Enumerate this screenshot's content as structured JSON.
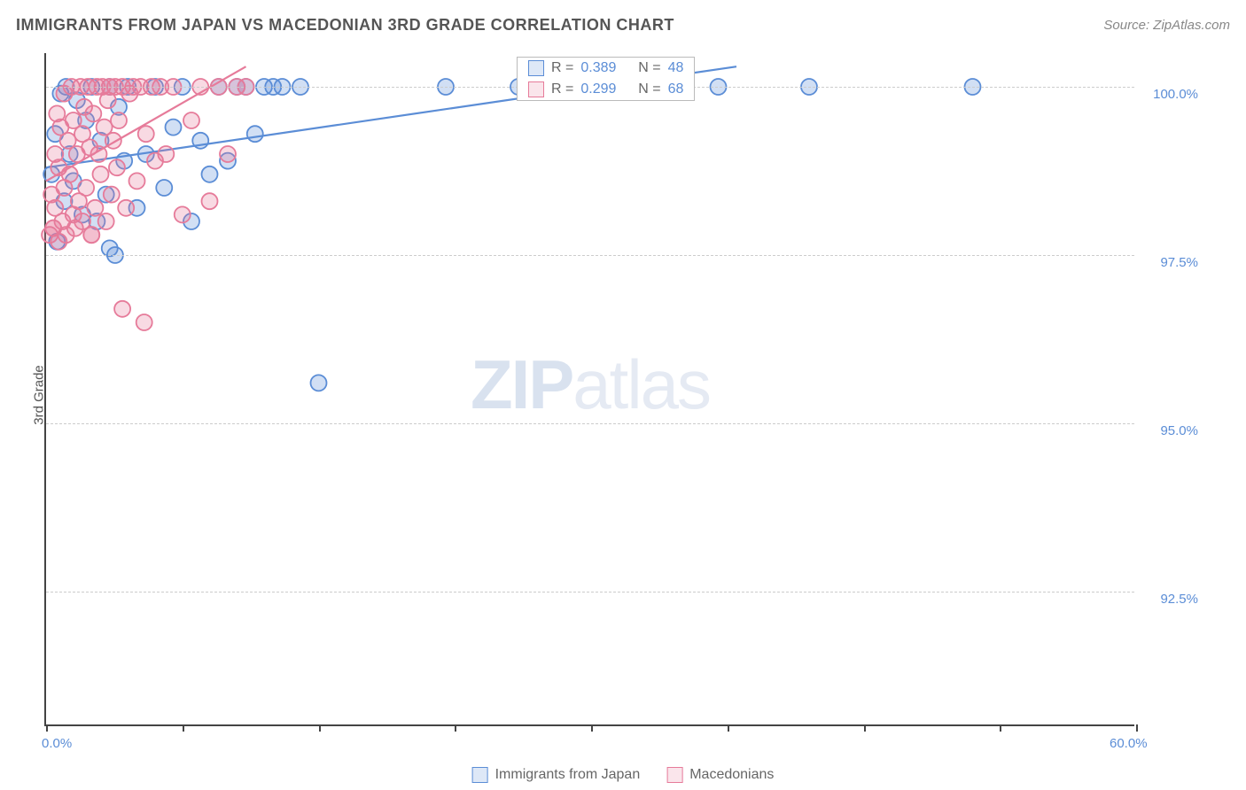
{
  "header": {
    "title": "IMMIGRANTS FROM JAPAN VS MACEDONIAN 3RD GRADE CORRELATION CHART",
    "source_prefix": "Source: ",
    "source": "ZipAtlas.com"
  },
  "chart": {
    "type": "scatter",
    "ylabel": "3rd Grade",
    "watermark_zip": "ZIP",
    "watermark_atlas": "atlas",
    "xlim": [
      0,
      60
    ],
    "ylim": [
      90.5,
      100.5
    ],
    "xtick_positions": [
      0,
      7.5,
      15,
      22.5,
      30,
      37.5,
      45,
      52.5,
      60
    ],
    "xtick_labels": {
      "0": "0.0%",
      "60": "60.0%"
    },
    "ytick_positions": [
      92.5,
      95.0,
      97.5,
      100.0
    ],
    "ytick_labels": [
      "92.5%",
      "95.0%",
      "97.5%",
      "100.0%"
    ],
    "plot_bg": "#ffffff",
    "grid_color": "#cccccc",
    "axis_color": "#444444",
    "tick_label_color": "#5b8dd6",
    "marker_radius": 9,
    "marker_stroke_width": 1.8,
    "marker_fill_opacity": 0.28,
    "trend_line_width": 2.2,
    "series": [
      {
        "name": "Immigrants from Japan",
        "color_stroke": "#5b8dd6",
        "color_fill": "#5b8dd6",
        "r_value": "0.389",
        "n_value": "48",
        "trend": {
          "x1": 0,
          "y1": 98.8,
          "x2": 38,
          "y2": 100.3
        },
        "points": [
          [
            0.3,
            98.7
          ],
          [
            0.5,
            99.3
          ],
          [
            0.6,
            97.7
          ],
          [
            0.8,
            99.9
          ],
          [
            1.0,
            98.3
          ],
          [
            1.1,
            100.0
          ],
          [
            1.3,
            99.0
          ],
          [
            1.5,
            98.6
          ],
          [
            1.7,
            99.8
          ],
          [
            2.0,
            98.1
          ],
          [
            2.2,
            99.5
          ],
          [
            2.5,
            100.0
          ],
          [
            2.8,
            98.0
          ],
          [
            3.0,
            99.2
          ],
          [
            3.3,
            98.4
          ],
          [
            3.5,
            100.0
          ],
          [
            3.8,
            97.5
          ],
          [
            4.0,
            99.7
          ],
          [
            4.3,
            98.9
          ],
          [
            4.5,
            100.0
          ],
          [
            5.0,
            98.2
          ],
          [
            5.5,
            99.0
          ],
          [
            6.0,
            100.0
          ],
          [
            6.5,
            98.5
          ],
          [
            7.0,
            99.4
          ],
          [
            7.5,
            100.0
          ],
          [
            8.0,
            98.0
          ],
          [
            8.5,
            99.2
          ],
          [
            9.0,
            98.7
          ],
          [
            9.5,
            100.0
          ],
          [
            10.0,
            98.9
          ],
          [
            10.5,
            100.0
          ],
          [
            11.0,
            100.0
          ],
          [
            11.5,
            99.3
          ],
          [
            12.0,
            100.0
          ],
          [
            12.5,
            100.0
          ],
          [
            13.0,
            100.0
          ],
          [
            14.0,
            100.0
          ],
          [
            15.0,
            95.6
          ],
          [
            22.0,
            100.0
          ],
          [
            26.0,
            100.0
          ],
          [
            30.0,
            100.0
          ],
          [
            32.0,
            100.0
          ],
          [
            33.0,
            100.0
          ],
          [
            37.0,
            100.0
          ],
          [
            42.0,
            100.0
          ],
          [
            51.0,
            100.0
          ],
          [
            3.5,
            97.6
          ]
        ]
      },
      {
        "name": "Macedonians",
        "color_stroke": "#e67b9a",
        "color_fill": "#e67b9a",
        "r_value": "0.299",
        "n_value": "68",
        "trend": {
          "x1": 0,
          "y1": 98.6,
          "x2": 11,
          "y2": 100.3
        },
        "points": [
          [
            0.2,
            97.8
          ],
          [
            0.3,
            98.4
          ],
          [
            0.4,
            97.9
          ],
          [
            0.5,
            99.0
          ],
          [
            0.5,
            98.2
          ],
          [
            0.6,
            99.6
          ],
          [
            0.7,
            97.7
          ],
          [
            0.7,
            98.8
          ],
          [
            0.8,
            99.4
          ],
          [
            0.9,
            98.0
          ],
          [
            1.0,
            99.9
          ],
          [
            1.0,
            98.5
          ],
          [
            1.1,
            97.8
          ],
          [
            1.2,
            99.2
          ],
          [
            1.3,
            98.7
          ],
          [
            1.4,
            100.0
          ],
          [
            1.5,
            98.1
          ],
          [
            1.5,
            99.5
          ],
          [
            1.6,
            97.9
          ],
          [
            1.7,
            99.0
          ],
          [
            1.8,
            98.3
          ],
          [
            1.9,
            100.0
          ],
          [
            2.0,
            99.3
          ],
          [
            2.0,
            98.0
          ],
          [
            2.1,
            99.7
          ],
          [
            2.2,
            98.5
          ],
          [
            2.3,
            100.0
          ],
          [
            2.4,
            99.1
          ],
          [
            2.5,
            97.8
          ],
          [
            2.6,
            99.6
          ],
          [
            2.7,
            98.2
          ],
          [
            2.8,
            100.0
          ],
          [
            2.9,
            99.0
          ],
          [
            3.0,
            98.7
          ],
          [
            3.1,
            100.0
          ],
          [
            3.2,
            99.4
          ],
          [
            3.3,
            98.0
          ],
          [
            3.4,
            99.8
          ],
          [
            3.5,
            100.0
          ],
          [
            3.6,
            98.4
          ],
          [
            3.7,
            99.2
          ],
          [
            3.8,
            100.0
          ],
          [
            3.9,
            98.8
          ],
          [
            4.0,
            99.5
          ],
          [
            4.2,
            100.0
          ],
          [
            4.4,
            98.2
          ],
          [
            4.6,
            99.9
          ],
          [
            4.8,
            100.0
          ],
          [
            5.0,
            98.6
          ],
          [
            5.2,
            100.0
          ],
          [
            5.5,
            99.3
          ],
          [
            5.8,
            100.0
          ],
          [
            6.0,
            98.9
          ],
          [
            6.3,
            100.0
          ],
          [
            6.6,
            99.0
          ],
          [
            7.0,
            100.0
          ],
          [
            7.5,
            98.1
          ],
          [
            8.0,
            99.5
          ],
          [
            8.5,
            100.0
          ],
          [
            9.0,
            98.3
          ],
          [
            9.5,
            100.0
          ],
          [
            10.0,
            99.0
          ],
          [
            10.5,
            100.0
          ],
          [
            11.0,
            100.0
          ],
          [
            4.2,
            96.7
          ],
          [
            5.4,
            96.5
          ],
          [
            0.4,
            97.9
          ],
          [
            2.5,
            97.8
          ]
        ]
      }
    ],
    "legend_top": {
      "r_label": "R =",
      "n_label": "N ="
    },
    "legend_bottom_labels": [
      "Immigrants from Japan",
      "Macedonians"
    ]
  }
}
